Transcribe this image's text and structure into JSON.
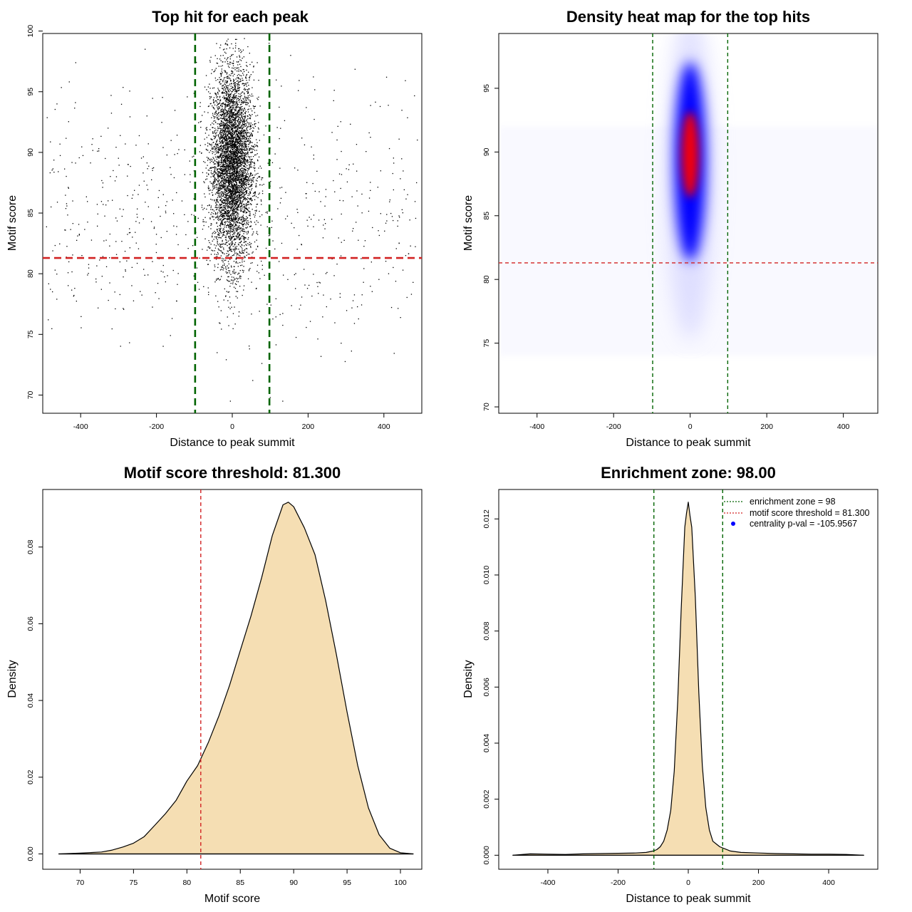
{
  "chart_data": [
    {
      "type": "scatter",
      "title": "Top hit for each peak",
      "xlabel": "Distance to peak summit",
      "ylabel": "Motif score",
      "xlim": [
        -500,
        500
      ],
      "ylim": [
        68.5,
        99.8
      ],
      "xticks": [
        "-400",
        "-200",
        "0",
        "200",
        "400"
      ],
      "yticks": [
        "70",
        "75",
        "80",
        "85",
        "90",
        "95",
        "100"
      ],
      "vlines": [
        -98,
        98
      ],
      "hline": 81.3,
      "colors": {
        "points": "#000000",
        "vlines": "#006400",
        "hline": "#d22222"
      },
      "series": [
        {
          "role": "central cluster",
          "x_center": 0,
          "x_sd": 28,
          "y_center": 89,
          "y_sd": 4
        },
        {
          "role": "background",
          "x_range": [
            -490,
            490
          ],
          "y_range": [
            72,
            97
          ]
        }
      ],
      "outliers": [
        [
          -413,
          97.4
        ],
        [
          154,
          98.0
        ],
        [
          407,
          96.2
        ],
        [
          -230,
          98.5
        ],
        [
          97,
          99.0
        ],
        [
          -40,
          73.5
        ],
        [
          54,
          71.2
        ],
        [
          100,
          69.8
        ],
        [
          133,
          69.5
        ],
        [
          -5,
          69.5
        ]
      ]
    },
    {
      "type": "heatmap",
      "title": "Density heat map for the top hits",
      "xlabel": "Distance to peak summit",
      "ylabel": "Motif score",
      "xlim": [
        -500,
        490
      ],
      "ylim": [
        69.5,
        99.3
      ],
      "xticks": [
        "-400",
        "-200",
        "0",
        "200",
        "400"
      ],
      "yticks": [
        "70",
        "75",
        "80",
        "85",
        "90",
        "95"
      ],
      "vlines": [
        -98,
        98
      ],
      "hline": 81.3,
      "peak": {
        "x": 0,
        "y": 89.8
      },
      "colors": {
        "low": "#ffffff",
        "mid": "#0000ff",
        "high": "#ff0000",
        "vlines": "#006400",
        "hline": "#d22222"
      }
    },
    {
      "type": "area",
      "title": "Motif score threshold: 81.300",
      "xlabel": "Motif score",
      "ylabel": "Density",
      "xlim": [
        66.5,
        102
      ],
      "ylim": [
        -0.004,
        0.095
      ],
      "xticks": [
        "70",
        "75",
        "80",
        "85",
        "90",
        "95",
        "100"
      ],
      "yticks": [
        "0.00",
        "0.02",
        "0.04",
        "0.06",
        "0.08"
      ],
      "vline": 81.3,
      "x": [
        68,
        70,
        72,
        73,
        74,
        75,
        76,
        77,
        78,
        79,
        80,
        81,
        82,
        83,
        84,
        85,
        86,
        87,
        88,
        89,
        89.5,
        90,
        91,
        92,
        93,
        94,
        95,
        96,
        97,
        98,
        99,
        100,
        101.2
      ],
      "values": [
        0,
        0.0002,
        0.0005,
        0.001,
        0.0018,
        0.0028,
        0.0045,
        0.0075,
        0.0105,
        0.014,
        0.019,
        0.023,
        0.029,
        0.036,
        0.044,
        0.053,
        0.062,
        0.072,
        0.083,
        0.091,
        0.0917,
        0.0905,
        0.085,
        0.078,
        0.066,
        0.052,
        0.037,
        0.023,
        0.012,
        0.005,
        0.0015,
        0.0003,
        0
      ],
      "colors": {
        "fill": "#f5deb3",
        "line": "#000000",
        "vline": "#d22222"
      }
    },
    {
      "type": "area",
      "title": "Enrichment zone: 98.00",
      "xlabel": "Distance to peak summit",
      "ylabel": "Density",
      "xlim": [
        -540,
        540
      ],
      "ylim": [
        -0.0005,
        0.01305
      ],
      "xticks": [
        "-400",
        "-200",
        "0",
        "200",
        "400"
      ],
      "yticks": [
        "0.000",
        "0.002",
        "0.004",
        "0.006",
        "0.008",
        "0.010",
        "0.012"
      ],
      "vlines": [
        -98,
        98
      ],
      "x": [
        -500,
        -450,
        -400,
        -350,
        -300,
        -250,
        -200,
        -150,
        -120,
        -100,
        -90,
        -80,
        -70,
        -60,
        -50,
        -40,
        -30,
        -20,
        -10,
        -5,
        0,
        5,
        10,
        20,
        30,
        40,
        50,
        60,
        70,
        80,
        90,
        100,
        120,
        150,
        200,
        250,
        300,
        350,
        400,
        450,
        500
      ],
      "values": [
        0,
        5e-05,
        4e-05,
        3e-05,
        5e-05,
        6e-05,
        7e-05,
        8e-05,
        0.0001,
        0.00015,
        0.0002,
        0.0003,
        0.0005,
        0.0009,
        0.0016,
        0.003,
        0.0055,
        0.0088,
        0.0117,
        0.0122,
        0.0126,
        0.0121,
        0.0117,
        0.0092,
        0.0058,
        0.0032,
        0.0017,
        0.0009,
        0.0005,
        0.0004,
        0.0003,
        0.00025,
        0.00015,
        0.0001,
        8e-05,
        6e-05,
        5e-05,
        4e-05,
        4e-05,
        3e-05,
        0
      ],
      "legend": [
        {
          "label": "enrichment zone = 98",
          "style": "dotted-line",
          "color": "#006400"
        },
        {
          "label": "motif score threshold = 81.300",
          "style": "dotted-line",
          "color": "#d22222"
        },
        {
          "label": "centrality p-val = -105.9567",
          "style": "dot",
          "color": "#0000ff"
        }
      ],
      "legend_position": "top-right",
      "colors": {
        "fill": "#f5deb3",
        "line": "#000000",
        "vlines": "#006400"
      }
    }
  ]
}
